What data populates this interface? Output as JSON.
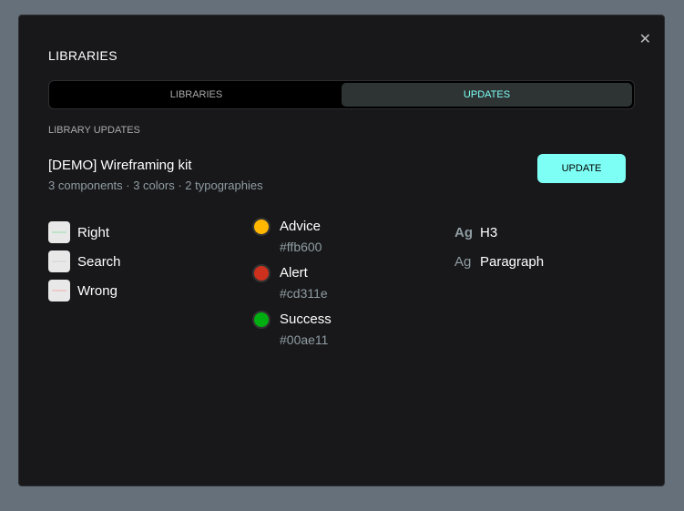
{
  "modal": {
    "title": "LIBRARIES",
    "close_icon": "close-icon"
  },
  "tabs": [
    {
      "label": "LIBRARIES",
      "active": false
    },
    {
      "label": "UPDATES",
      "active": true
    }
  ],
  "section_label": "LIBRARY UPDATES",
  "library": {
    "name": "[DEMO] Wireframing kit",
    "info": "3 components · 3 colors · 2 typographies",
    "update_label": "UPDATE"
  },
  "components": [
    {
      "name": "Right"
    },
    {
      "name": "Search"
    },
    {
      "name": "Wrong"
    }
  ],
  "colors": [
    {
      "name": "Advice",
      "hex": "#ffb600"
    },
    {
      "name": "Alert",
      "hex": "#cd311e"
    },
    {
      "name": "Success",
      "hex": "#00ae11"
    }
  ],
  "typographies": [
    {
      "sample": "Ag",
      "name": "H3"
    },
    {
      "sample": "Ag",
      "name": "Paragraph"
    }
  ],
  "accent": "#7efff5"
}
